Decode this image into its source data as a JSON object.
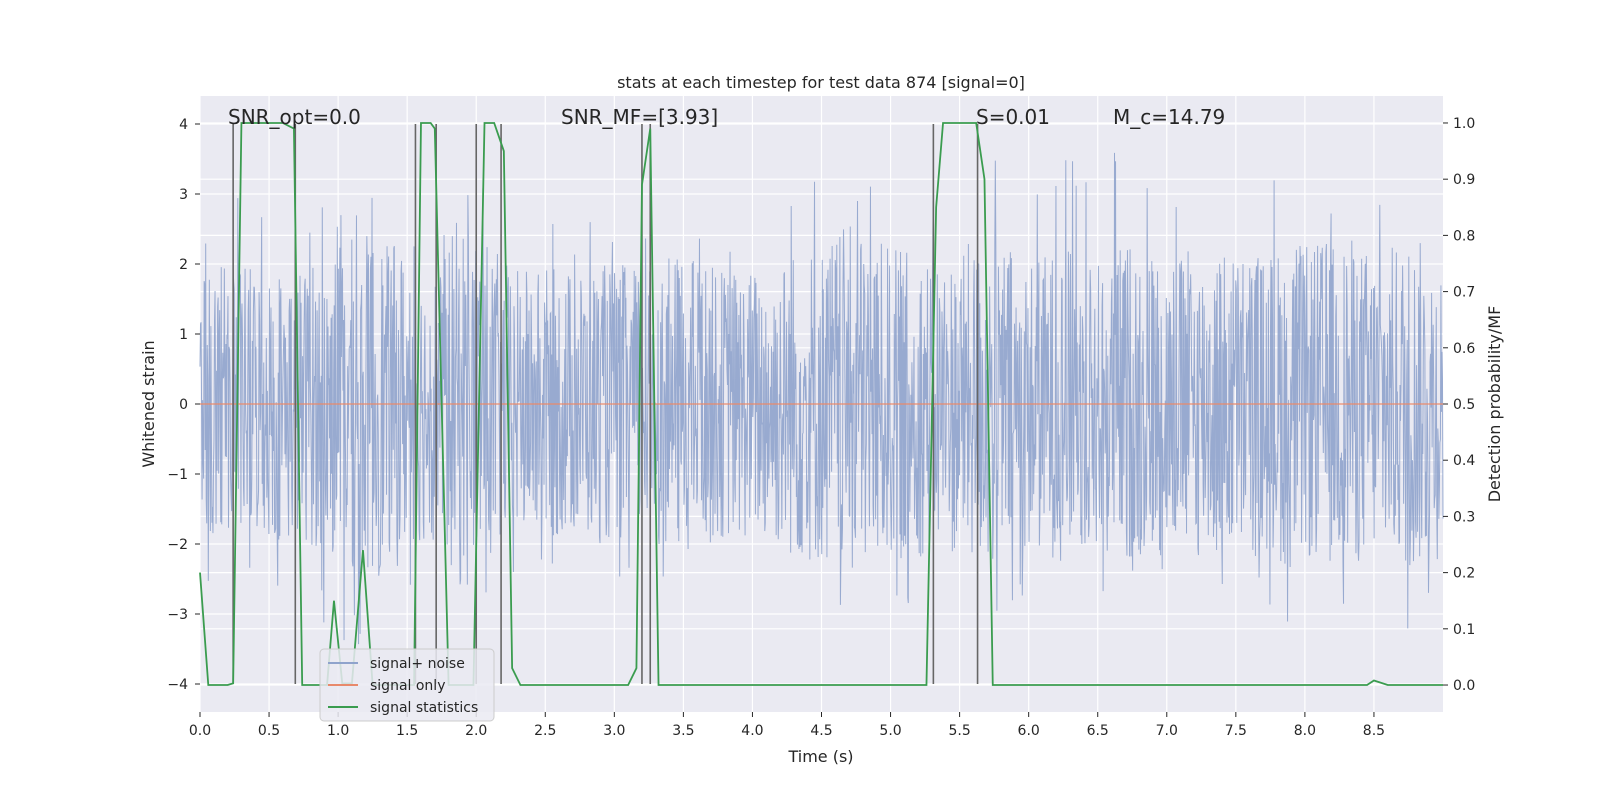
{
  "chart_data": {
    "type": "line",
    "title": "stats at each timestep for test data 874 [signal=0]",
    "xlabel": "Time (s)",
    "ylabel": "Whitened strain",
    "y2label": "Detection probability/MF",
    "xlim": [
      0.0,
      9.0
    ],
    "ylim": [
      -4.4,
      4.4
    ],
    "y2lim": [
      -0.048,
      1.048
    ],
    "x_ticks": [
      "0.0",
      "0.5",
      "1.0",
      "1.5",
      "2.0",
      "2.5",
      "3.0",
      "3.5",
      "4.0",
      "4.5",
      "5.0",
      "5.5",
      "6.0",
      "6.5",
      "7.0",
      "7.5",
      "8.0",
      "8.5"
    ],
    "x_tick_values": [
      0.0,
      0.5,
      1.0,
      1.5,
      2.0,
      2.5,
      3.0,
      3.5,
      4.0,
      4.5,
      5.0,
      5.5,
      6.0,
      6.5,
      7.0,
      7.5,
      8.0,
      8.5
    ],
    "y_ticks": [
      "−4",
      "−3",
      "−2",
      "−1",
      "0",
      "1",
      "2",
      "3",
      "4"
    ],
    "y_tick_values": [
      -4,
      -3,
      -2,
      -1,
      0,
      1,
      2,
      3,
      4
    ],
    "y2_ticks": [
      "0.0",
      "0.1",
      "0.2",
      "0.3",
      "0.4",
      "0.5",
      "0.6",
      "0.7",
      "0.8",
      "0.9",
      "1.0"
    ],
    "y2_tick_values": [
      0.0,
      0.1,
      0.2,
      0.3,
      0.4,
      0.5,
      0.6,
      0.7,
      0.8,
      0.9,
      1.0
    ],
    "grid": true,
    "legend_position": "lower-left",
    "series": [
      {
        "name": "signal+ noise",
        "color": "#8fa3cc",
        "axis": "left",
        "description_points": "dense noise envelope; typical range approx -2.5 to 2.5 with spikes to ±4",
        "envelope_samples": [
          [
            0.0,
            2.4,
            -2.5
          ],
          [
            0.25,
            3.0,
            -2.7
          ],
          [
            0.5,
            2.9,
            -2.6
          ],
          [
            0.75,
            2.6,
            -2.8
          ],
          [
            1.0,
            3.1,
            -3.5
          ],
          [
            1.25,
            3.3,
            -3.6
          ],
          [
            1.35,
            4.0,
            -3.0
          ],
          [
            1.5,
            2.7,
            -3.2
          ],
          [
            1.75,
            2.6,
            -3.3
          ],
          [
            1.85,
            3.5,
            -4.0
          ],
          [
            2.0,
            3.8,
            -3.3
          ],
          [
            2.25,
            2.6,
            -2.6
          ],
          [
            2.5,
            2.6,
            -2.6
          ],
          [
            2.75,
            2.6,
            -3.0
          ],
          [
            3.0,
            2.7,
            -2.6
          ],
          [
            3.25,
            2.6,
            -2.8
          ],
          [
            3.5,
            2.9,
            -3.2
          ],
          [
            3.75,
            2.6,
            -2.9
          ],
          [
            4.0,
            2.6,
            -2.8
          ],
          [
            4.25,
            2.9,
            -3.0
          ],
          [
            4.5,
            3.3,
            -3.1
          ],
          [
            4.75,
            3.4,
            -3.6
          ],
          [
            5.0,
            3.0,
            -3.0
          ],
          [
            5.25,
            2.9,
            -2.9
          ],
          [
            5.5,
            2.9,
            -3.0
          ],
          [
            5.75,
            3.5,
            -3.2
          ],
          [
            6.0,
            3.4,
            -2.8
          ],
          [
            6.25,
            3.6,
            -3.0
          ],
          [
            6.5,
            4.0,
            -2.8
          ],
          [
            6.75,
            3.2,
            -3.2
          ],
          [
            7.0,
            3.4,
            -2.9
          ],
          [
            7.25,
            3.4,
            -3.0
          ],
          [
            7.5,
            3.4,
            -3.0
          ],
          [
            7.75,
            3.6,
            -2.9
          ],
          [
            8.0,
            3.0,
            -3.4
          ],
          [
            8.25,
            3.3,
            -3.0
          ],
          [
            8.45,
            3.0,
            -3.8
          ],
          [
            8.6,
            3.0,
            -3.0
          ],
          [
            8.75,
            3.2,
            -3.5
          ],
          [
            9.0,
            3.0,
            -2.9
          ]
        ]
      },
      {
        "name": "signal only",
        "color": "#e8896b",
        "axis": "left",
        "x": [
          0.0,
          9.0
        ],
        "y": [
          0.0,
          0.0
        ]
      },
      {
        "name": "signal statistics",
        "color": "#3a9c4f",
        "axis": "right",
        "x": [
          0.0,
          0.06,
          0.2,
          0.24,
          0.3,
          0.35,
          0.6,
          0.68,
          0.74,
          0.84,
          0.92,
          0.97,
          1.03,
          1.1,
          1.18,
          1.25,
          1.32,
          1.4,
          1.55,
          1.6,
          1.67,
          1.7,
          1.8,
          1.98,
          2.06,
          2.13,
          2.2,
          2.26,
          2.32,
          2.5,
          3.1,
          3.16,
          3.2,
          3.26,
          3.32,
          3.4,
          4.0,
          5.0,
          5.26,
          5.33,
          5.38,
          5.62,
          5.68,
          5.74,
          6.0,
          7.0,
          8.0,
          8.45,
          8.5,
          8.6,
          9.0
        ],
        "y": [
          0.2,
          0.0,
          0.0,
          0.003,
          1.0,
          1.0,
          1.0,
          0.99,
          0.0,
          0.0,
          0.0,
          0.15,
          0.003,
          0.003,
          0.24,
          0.0,
          0.0,
          0.0,
          0.0,
          1.0,
          1.0,
          0.99,
          0.0,
          0.0,
          1.0,
          1.0,
          0.95,
          0.03,
          0.0,
          0.0,
          0.0,
          0.03,
          0.89,
          0.99,
          0.0,
          0.0,
          0.0,
          0.0,
          0.0,
          0.85,
          1.0,
          1.0,
          0.9,
          0.0,
          0.0,
          0.0,
          0.0,
          0.0,
          0.008,
          0.0,
          0.0
        ]
      }
    ],
    "vertical_markers": [
      0.24,
      0.69,
      1.56,
      1.71,
      2.0,
      2.18,
      3.2,
      3.26,
      5.31,
      5.63
    ],
    "annotations": [
      {
        "text": "SNR_opt=0.0",
        "x": 0.2,
        "y": 4.05
      },
      {
        "text": "SNR_MF=[3.93]",
        "x": 2.6,
        "y": 4.05
      },
      {
        "text": "S=0.01",
        "x": 5.62,
        "y": 4.05
      },
      {
        "text": "M_c=14.79",
        "x": 6.62,
        "y": 4.05
      }
    ]
  }
}
